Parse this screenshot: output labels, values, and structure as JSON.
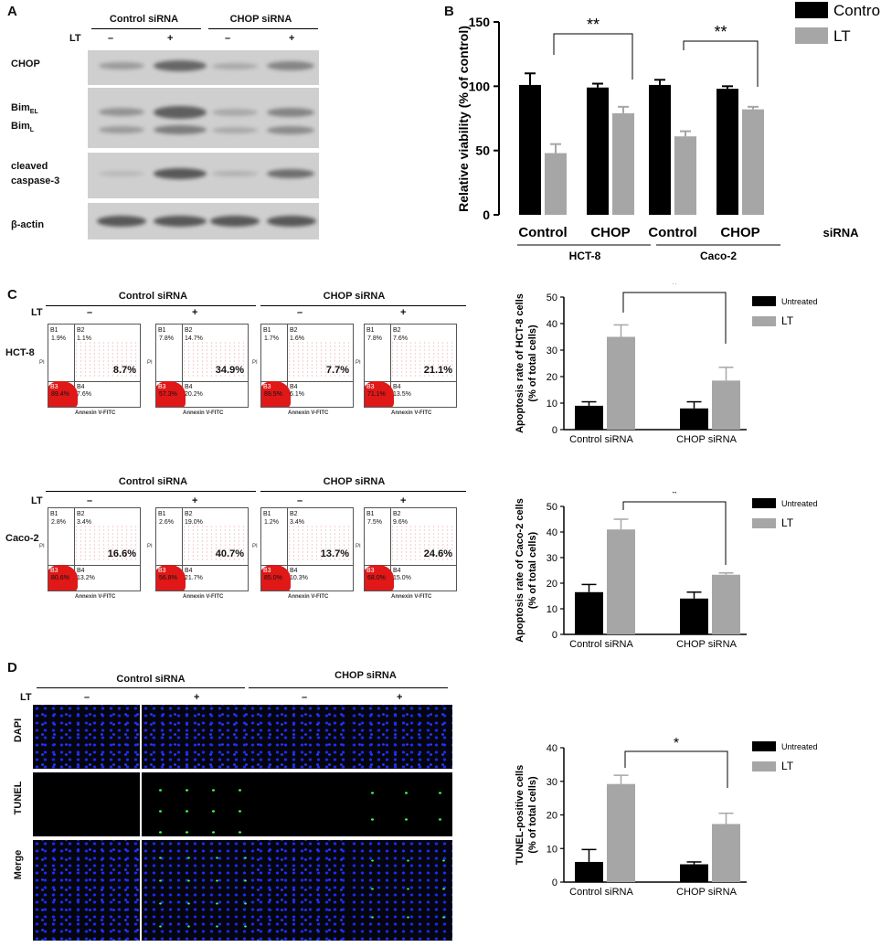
{
  "panels": {
    "A": "A",
    "B": "B",
    "C": "C",
    "D": "D"
  },
  "panel_a": {
    "groups": [
      "Control siRNA",
      "CHOP siRNA"
    ],
    "lt_label": "LT",
    "treatments": [
      "–",
      "+",
      "–",
      "+"
    ],
    "rows": [
      "CHOP",
      "Bim_EL",
      "Bim_L",
      "cleaved",
      "caspase-3",
      "β-actin"
    ]
  },
  "panel_c": {
    "groups": [
      "Control siRNA",
      "CHOP siRNA"
    ],
    "lt_label": "LT",
    "treatments": [
      "–",
      "+",
      "–",
      "+"
    ],
    "cell_lines": [
      "HCT-8",
      "Caco-2"
    ],
    "x_axis": "Annexin V-FITC",
    "y_axis": "PI",
    "hct8_plots": [
      {
        "b1": "1.9%",
        "b2": "1.1%",
        "b3": "89.4%",
        "b4": "7.6%",
        "late": "8.7%"
      },
      {
        "b1": "7.8%",
        "b2": "14.7%",
        "b3": "57.3%",
        "b4": "20.2%",
        "late": "34.9%"
      },
      {
        "b1": "1.7%",
        "b2": "1.6%",
        "b3": "89.5%",
        "b4": "6.1%",
        "late": "7.7%"
      },
      {
        "b1": "7.8%",
        "b2": "7.6%",
        "b3": "71.1%",
        "b4": "13.5%",
        "late": "21.1%"
      }
    ],
    "caco2_plots": [
      {
        "b1": "2.8%",
        "b2": "3.4%",
        "b3": "80.6%",
        "b4": "13.2%",
        "late": "16.6%"
      },
      {
        "b1": "2.6%",
        "b2": "19.0%",
        "b3": "56.8%",
        "b4": "21.7%",
        "late": "40.7%"
      },
      {
        "b1": "1.2%",
        "b2": "3.4%",
        "b3": "85.0%",
        "b4": "10.3%",
        "late": "13.7%"
      },
      {
        "b1": "7.5%",
        "b2": "9.6%",
        "b3": "68.0%",
        "b4": "15.0%",
        "late": "24.6%"
      }
    ]
  },
  "panel_d": {
    "groups": [
      "Control siRNA",
      "CHOP siRNA"
    ],
    "lt_label": "LT",
    "treatments": [
      "–",
      "+",
      "–",
      "+"
    ],
    "rows": [
      "DAPI",
      "TUNEL",
      "Merge"
    ]
  },
  "chart_data": [
    {
      "type": "bar",
      "panel": "B",
      "categories": [
        "Control",
        "CHOP",
        "Control",
        "CHOP"
      ],
      "group_labels": [
        "HCT-8",
        "Caco-2"
      ],
      "category_suffix": "siRNA",
      "series": [
        {
          "name": "Control",
          "values": [
            101,
            99,
            101,
            98
          ],
          "errors": [
            9,
            3,
            4,
            2
          ],
          "color": "#000000"
        },
        {
          "name": "LT",
          "values": [
            48,
            79,
            61,
            82
          ],
          "errors": [
            7,
            5,
            4,
            2
          ],
          "color": "#a6a6a6"
        }
      ],
      "ylabel": "Relative viability (% of control)",
      "yticks": [
        0,
        50,
        100,
        150
      ],
      "ylim": [
        0,
        150
      ],
      "significance": [
        {
          "label": "**",
          "from_category": 0,
          "to_category": 1
        },
        {
          "label": "**",
          "from_category": 2,
          "to_category": 3
        }
      ],
      "legend_position": "top-right"
    },
    {
      "type": "bar",
      "panel": "C-top",
      "categories": [
        "Control siRNA",
        "CHOP siRNA"
      ],
      "series": [
        {
          "name": "Untreated",
          "values": [
            9,
            8
          ],
          "errors": [
            1.5,
            2.5
          ],
          "color": "#000000"
        },
        {
          "name": "LT",
          "values": [
            35,
            18.5
          ],
          "errors": [
            4.5,
            5
          ],
          "color": "#a6a6a6"
        }
      ],
      "ylabel": "Apoptosis rate of HCT-8 cells",
      "ylabel2": "(% of total cells)",
      "yticks": [
        0,
        10,
        20,
        30,
        40,
        50
      ],
      "ylim": [
        0,
        50
      ],
      "significance": [
        {
          "label": "*"
        }
      ],
      "legend_position": "top-right"
    },
    {
      "type": "bar",
      "panel": "C-bottom",
      "categories": [
        "Control siRNA",
        "CHOP siRNA"
      ],
      "series": [
        {
          "name": "Untreated",
          "values": [
            16.5,
            14
          ],
          "errors": [
            3,
            2.5
          ],
          "color": "#000000"
        },
        {
          "name": "LT",
          "values": [
            41,
            23.3
          ],
          "errors": [
            4,
            0.7
          ],
          "color": "#a6a6a6"
        }
      ],
      "ylabel": "Apoptosis rate of Caco-2 cells",
      "ylabel2": "(% of total cells)",
      "yticks": [
        0,
        10,
        20,
        30,
        40,
        50
      ],
      "ylim": [
        0,
        50
      ],
      "significance": [
        {
          "label": "*"
        }
      ],
      "legend_position": "top-right"
    },
    {
      "type": "bar",
      "panel": "D",
      "categories": [
        "Control siRNA",
        "CHOP siRNA"
      ],
      "series": [
        {
          "name": "Untreated",
          "values": [
            6,
            5.3
          ],
          "errors": [
            3.7,
            0.7
          ],
          "color": "#000000"
        },
        {
          "name": "LT",
          "values": [
            29.2,
            17.3
          ],
          "errors": [
            2.6,
            3.2
          ],
          "color": "#a6a6a6"
        }
      ],
      "ylabel": "TUNEL-positive cells",
      "ylabel2": "(% of total cells)",
      "yticks": [
        0,
        10,
        20,
        30,
        40
      ],
      "ylim": [
        0,
        40
      ],
      "significance": [
        {
          "label": "*"
        }
      ],
      "legend_position": "top-right"
    }
  ]
}
